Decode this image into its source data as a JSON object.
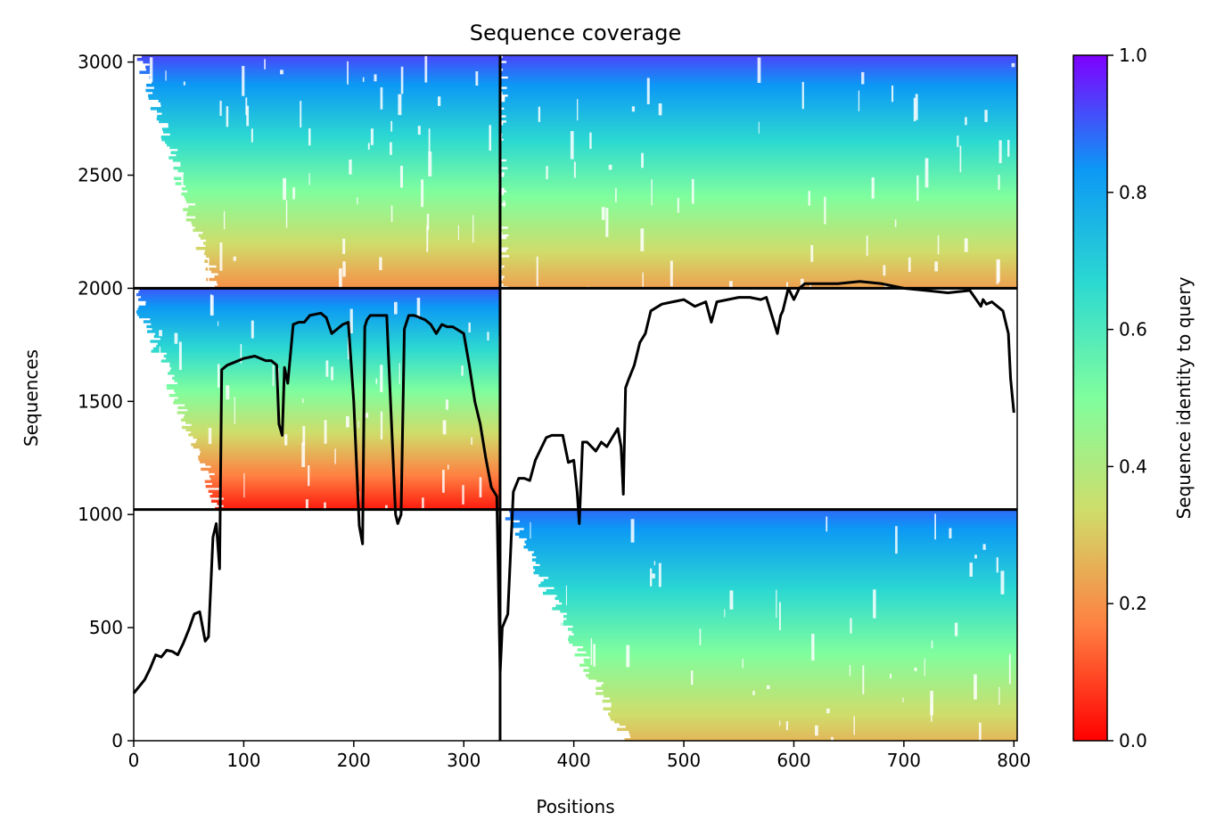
{
  "chart_data": {
    "type": "heatmap",
    "title": "Sequence coverage",
    "xlabel": "Positions",
    "ylabel": "Sequences",
    "xlim": [
      0,
      803
    ],
    "ylim": [
      0,
      3030
    ],
    "xticks": [
      0,
      100,
      200,
      300,
      400,
      500,
      600,
      700,
      800
    ],
    "yticks": [
      0,
      500,
      1000,
      1500,
      2000,
      2500,
      3000
    ],
    "colorbar": {
      "label": "Sequence identity to query",
      "range": [
        0.0,
        1.0
      ],
      "ticks": [
        0.0,
        0.2,
        0.4,
        0.6,
        0.8,
        1.0
      ],
      "colormap": "rainbow_r",
      "colors": [
        "#ff0000",
        "#ff7f41",
        "#d0dc6a",
        "#80fe9e",
        "#2cd9d1",
        "#0c98f5",
        "#7f00ff"
      ]
    },
    "block_dividers": {
      "x": [
        333
      ],
      "y": [
        1022,
        2000
      ]
    },
    "blocks": [
      {
        "x": [
          0,
          333
        ],
        "y": [
          2000,
          3030
        ],
        "identity_top": 0.92,
        "identity_bottom": 0.2,
        "coverage_start_top": 5,
        "coverage_start_bottom": 75
      },
      {
        "x": [
          333,
          803
        ],
        "y": [
          2000,
          3030
        ],
        "identity_top": 0.92,
        "identity_bottom": 0.23,
        "coverage_start_top": 333,
        "coverage_start_bottom": 335
      },
      {
        "x": [
          0,
          333
        ],
        "y": [
          1022,
          2000
        ],
        "identity_top": 0.9,
        "identity_bottom": 0.04,
        "coverage_start_top": 0,
        "coverage_start_bottom": 80
      },
      {
        "x": [
          333,
          803
        ],
        "y": [
          0,
          1022
        ],
        "identity_top": 0.88,
        "identity_bottom": 0.27,
        "coverage_start_top": 340,
        "coverage_start_bottom": 447
      }
    ],
    "coverage_line": {
      "x": [
        0,
        5,
        10,
        15,
        20,
        25,
        30,
        35,
        40,
        45,
        50,
        55,
        60,
        65,
        68,
        72,
        75,
        78,
        80,
        85,
        90,
        100,
        110,
        120,
        125,
        130,
        132,
        135,
        137,
        140,
        145,
        150,
        155,
        160,
        170,
        175,
        180,
        190,
        195,
        200,
        205,
        208,
        210,
        212,
        215,
        220,
        225,
        230,
        238,
        240,
        243,
        246,
        250,
        255,
        260,
        265,
        270,
        275,
        280,
        285,
        290,
        300,
        305,
        310,
        315,
        320,
        325,
        330,
        333,
        335,
        340,
        345,
        350,
        355,
        360,
        365,
        370,
        375,
        380,
        385,
        390,
        395,
        400,
        403,
        405,
        408,
        412,
        420,
        425,
        430,
        435,
        440,
        443,
        445,
        447,
        450,
        455,
        460,
        465,
        470,
        480,
        490,
        500,
        510,
        520,
        525,
        530,
        540,
        550,
        560,
        570,
        575,
        580,
        585,
        588,
        590,
        595,
        600,
        605,
        610,
        620,
        640,
        660,
        680,
        700,
        720,
        740,
        760,
        770,
        772,
        775,
        780,
        790,
        795,
        797,
        800,
        803
      ],
      "y": [
        210,
        240,
        270,
        320,
        380,
        370,
        400,
        395,
        380,
        430,
        490,
        560,
        570,
        440,
        460,
        900,
        960,
        760,
        1640,
        1660,
        1670,
        1690,
        1700,
        1680,
        1680,
        1660,
        1400,
        1350,
        1650,
        1580,
        1840,
        1850,
        1850,
        1880,
        1890,
        1870,
        1800,
        1840,
        1850,
        1500,
        950,
        870,
        1830,
        1860,
        1880,
        1880,
        1880,
        1880,
        1000,
        960,
        1000,
        1820,
        1880,
        1880,
        1870,
        1860,
        1840,
        1800,
        1840,
        1830,
        1830,
        1800,
        1660,
        1500,
        1400,
        1250,
        1120,
        1080,
        300,
        500,
        560,
        1100,
        1160,
        1160,
        1150,
        1240,
        1290,
        1340,
        1350,
        1350,
        1350,
        1230,
        1240,
        1100,
        960,
        1320,
        1320,
        1280,
        1320,
        1300,
        1340,
        1380,
        1300,
        1090,
        1560,
        1600,
        1660,
        1760,
        1800,
        1900,
        1930,
        1940,
        1950,
        1920,
        1940,
        1850,
        1940,
        1950,
        1960,
        1960,
        1950,
        1960,
        1880,
        1800,
        1880,
        1900,
        2000,
        1950,
        2000,
        2020,
        2020,
        2020,
        2030,
        2020,
        2000,
        1990,
        1980,
        1990,
        1920,
        1950,
        1930,
        1940,
        1900,
        1800,
        1600,
        1450
      ]
    }
  }
}
